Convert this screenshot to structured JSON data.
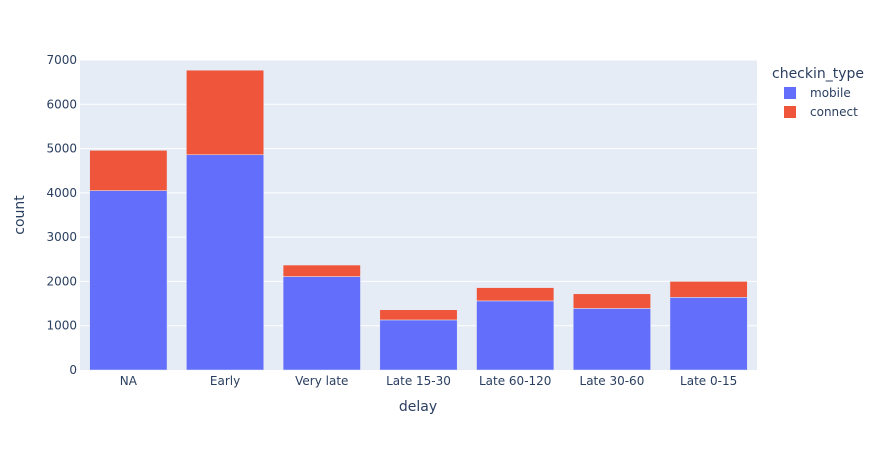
{
  "chart_data": {
    "type": "bar",
    "barmode": "stack",
    "categories": [
      "NA",
      "Early",
      "Very late",
      "Late 15-30",
      "Late 60-120",
      "Late 30-60",
      "Late 0-15"
    ],
    "series": [
      {
        "name": "mobile",
        "color": "#636efa",
        "values": [
          4050,
          4860,
          2110,
          1130,
          1560,
          1390,
          1640
        ]
      },
      {
        "name": "connect",
        "color": "#ef553b",
        "values": [
          910,
          1910,
          260,
          230,
          300,
          330,
          360
        ]
      }
    ],
    "xlabel": "delay",
    "ylabel": "count",
    "ylim": [
      0,
      7000
    ],
    "yticks": [
      0,
      1000,
      2000,
      3000,
      4000,
      5000,
      6000,
      7000
    ],
    "legend_title": "checkin_type",
    "legend_position": "top-right",
    "grid": true,
    "plot_background": "#e5ecf6"
  }
}
